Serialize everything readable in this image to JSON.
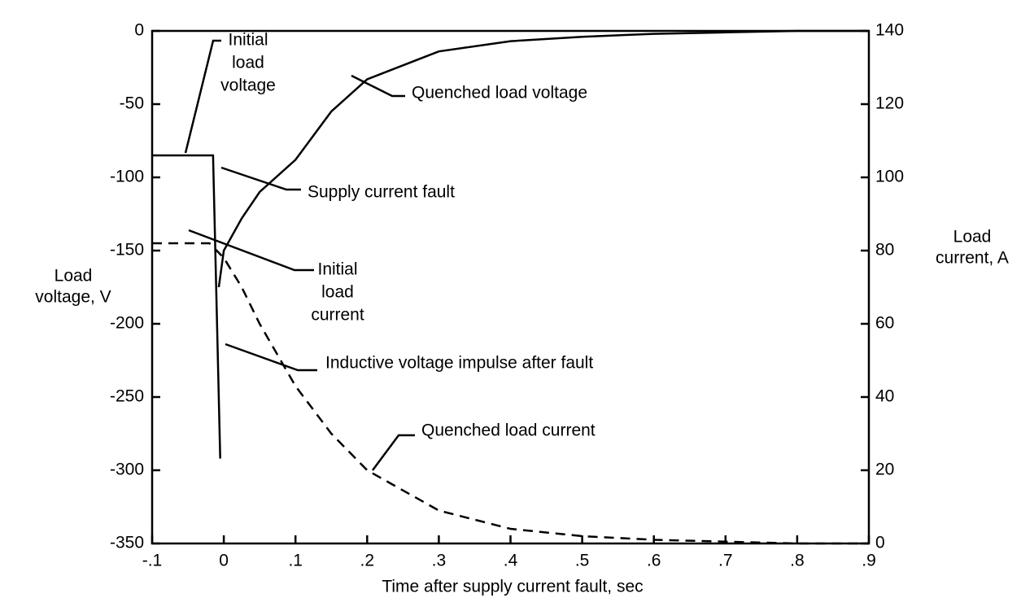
{
  "chart_data": {
    "type": "line",
    "xlabel": "Time after supply current fault, sec",
    "ylabel": [
      "Load",
      "voltage, V"
    ],
    "y2label": [
      "Load",
      "current, A"
    ],
    "xlim": [
      -0.1,
      0.9
    ],
    "xticks": [
      {
        "value": -0.1,
        "label": "-.1"
      },
      0,
      {
        "value": 0.1,
        "label": ".1"
      },
      {
        "value": 0.2,
        "label": ".2"
      },
      {
        "value": 0.3,
        "label": ".3"
      },
      {
        "value": 0.4,
        "label": ".4"
      },
      {
        "value": 0.5,
        "label": ".5"
      },
      {
        "value": 0.6,
        "label": ".6"
      },
      {
        "value": 0.7,
        "label": ".7"
      },
      {
        "value": 0.8,
        "label": ".8"
      },
      {
        "value": 0.9,
        "label": ".9"
      }
    ],
    "ylim": [
      -350,
      0
    ],
    "yticks": [
      0,
      -50,
      -100,
      -150,
      -200,
      -250,
      -300,
      -350
    ],
    "y2lim": [
      0,
      140
    ],
    "y2ticks": [
      0,
      20,
      40,
      60,
      80,
      100,
      120,
      140
    ],
    "series": [
      {
        "color": "#000000",
        "dash": false,
        "x": [
          -0.1,
          -0.015,
          -0.005,
          null,
          -0.007,
          0.0,
          0.025,
          0.05,
          0.1,
          0.15,
          0.2,
          0.3,
          0.4,
          0.5,
          0.6,
          0.7,
          0.8,
          0.9
        ],
        "values": [
          -85,
          -85,
          -292,
          null,
          -175,
          -150,
          -128,
          -110,
          -88,
          -55,
          -33,
          -14,
          -7,
          -4,
          -2,
          -1,
          0,
          0
        ]
      },
      {
        "color": "#000000",
        "dash": true,
        "axis": "y2",
        "x": [
          -0.1,
          -0.02,
          0.0,
          0.025,
          0.05,
          0.1,
          0.15,
          0.2,
          0.3,
          0.4,
          0.5,
          0.6,
          0.7,
          0.8,
          0.9
        ],
        "values": [
          82,
          82,
          78,
          70,
          60,
          43,
          30,
          20,
          9,
          4,
          2,
          1,
          0.5,
          0,
          0
        ]
      }
    ],
    "annotations": [
      {
        "lines": [
          "Initial",
          "load",
          "voltage"
        ]
      },
      {
        "lines": [
          "Quenched load voltage"
        ]
      },
      {
        "lines": [
          "Supply current fault"
        ]
      },
      {
        "lines": [
          "Initial",
          "load",
          "current"
        ]
      },
      {
        "lines": [
          "Inductive voltage impulse after fault"
        ]
      },
      {
        "lines": [
          "Quenched load current"
        ]
      }
    ]
  }
}
